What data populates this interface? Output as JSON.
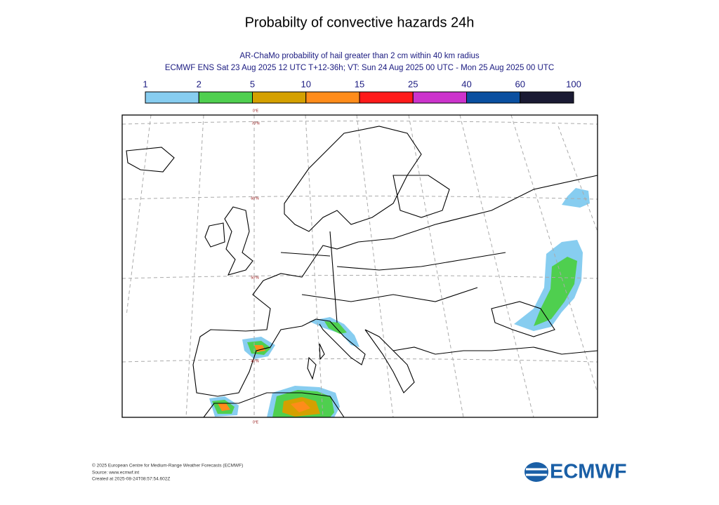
{
  "header": {
    "title": "Probabilty of convective hazards 24h",
    "subtitle": [
      "AR-ChaMo probability of hail greater than 2 cm within 40 km radius",
      "ECMWF ENS Sat 23 Aug 2025 12 UTC T+12-36h; VT: Sun 24 Aug 2025 00 UTC - Mon 25 Aug 2025 00 UTC"
    ]
  },
  "legend": {
    "levels": [
      1,
      2,
      5,
      10,
      15,
      25,
      40,
      60,
      100
    ],
    "colors": [
      "#87cdf0",
      "#4fcf4f",
      "#d4a000",
      "#ff8c1a",
      "#ff1a1a",
      "#cc33cc",
      "#0a4fa0",
      "#1a1a33"
    ]
  },
  "map": {
    "labels": [
      "0°E",
      "70°N",
      "60°N",
      "50°N",
      "40°N",
      "0°E"
    ]
  },
  "footer": [
    "© 2025 European Centre for Medium-Range Weather Forecasts (ECMWF)",
    "Source: www.ecmwf.int",
    "Created at 2025-08-24T08:57:54.602Z"
  ],
  "logo": "ECMWF"
}
